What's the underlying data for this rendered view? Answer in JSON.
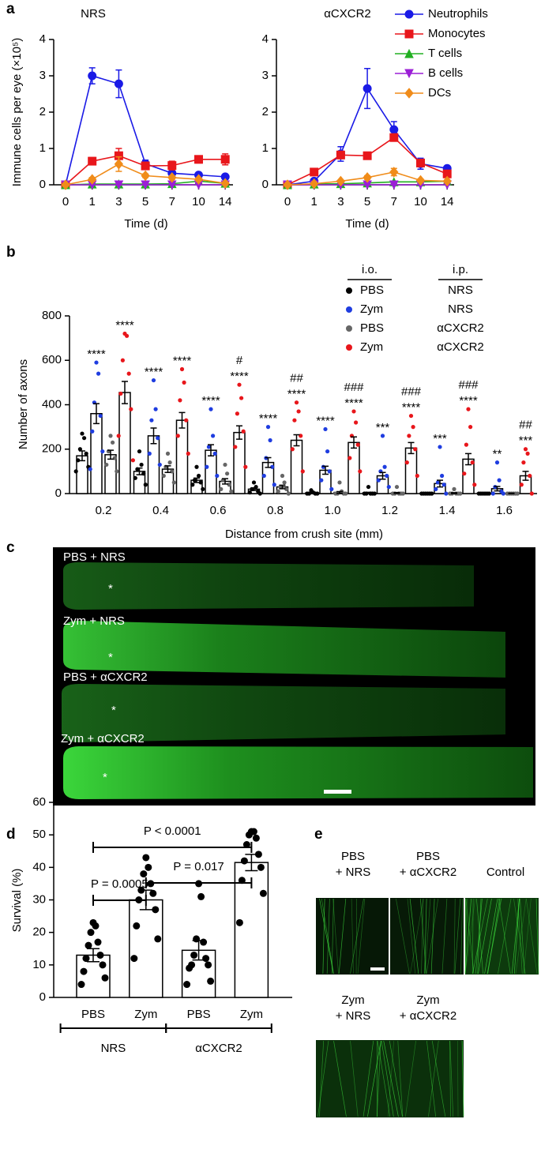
{
  "panel_labels": [
    "a",
    "b",
    "c",
    "d",
    "e"
  ],
  "chart_data": [
    {
      "type": "line",
      "title": "NRS",
      "y_label": "Immune cells per eye (×10⁵)",
      "x_label": "Time (d)",
      "categories": [
        "0",
        "1",
        "3",
        "5",
        "7",
        "10",
        "14"
      ],
      "ylim": [
        0,
        4
      ],
      "yticks": [
        0,
        1,
        2,
        3,
        4
      ],
      "series": [
        {
          "color": "#1a1ae6",
          "marker": "circle",
          "values": [
            0,
            3.0,
            2.78,
            0.58,
            0.32,
            0.27,
            0.22
          ],
          "errors": [
            0,
            0.22,
            0.38,
            0.1,
            0.05,
            0.04,
            0.04
          ]
        },
        {
          "color": "#e8161b",
          "marker": "square",
          "values": [
            0,
            0.65,
            0.8,
            0.52,
            0.53,
            0.7,
            0.7
          ],
          "errors": [
            0,
            0.1,
            0.2,
            0.1,
            0.12,
            0.1,
            0.15
          ]
        },
        {
          "color": "#22b022",
          "marker": "triangle-up",
          "values": [
            0,
            0.02,
            0.02,
            0.02,
            0.03,
            0.1,
            0.04
          ],
          "errors": [
            0,
            0.01,
            0.01,
            0.01,
            0.01,
            0.03,
            0.01
          ]
        },
        {
          "color": "#9b1fd6",
          "marker": "triangle-down",
          "values": [
            0,
            0,
            0,
            0,
            0,
            0,
            0
          ],
          "errors": [
            0,
            0,
            0,
            0,
            0,
            0,
            0
          ]
        },
        {
          "color": "#f08c1a",
          "marker": "diamond",
          "values": [
            0,
            0.15,
            0.57,
            0.25,
            0.2,
            0.15,
            0.04
          ],
          "errors": [
            0,
            0.05,
            0.2,
            0.05,
            0.05,
            0.04,
            0.02
          ]
        }
      ]
    },
    {
      "type": "line",
      "title": "αCXCR2",
      "x_label": "Time (d)",
      "legend": true,
      "categories": [
        "0",
        "1",
        "3",
        "5",
        "7",
        "10",
        "14"
      ],
      "ylim": [
        0,
        4
      ],
      "yticks": [
        0,
        1,
        2,
        3,
        4
      ],
      "series": [
        {
          "name": "Neutrophils",
          "color": "#1a1ae6",
          "marker": "circle",
          "values": [
            0,
            0.1,
            0.85,
            2.65,
            1.52,
            0.58,
            0.45
          ],
          "errors": [
            0,
            0.02,
            0.2,
            0.55,
            0.22,
            0.15,
            0.06
          ]
        },
        {
          "name": "Monocytes",
          "color": "#e8161b",
          "marker": "square",
          "values": [
            0,
            0.35,
            0.82,
            0.8,
            1.3,
            0.6,
            0.3
          ],
          "errors": [
            0,
            0.05,
            0.1,
            0.05,
            0.1,
            0.1,
            0.05
          ]
        },
        {
          "name": "T cells",
          "color": "#22b022",
          "marker": "triangle-up",
          "values": [
            0,
            0.02,
            0.03,
            0.05,
            0.08,
            0.08,
            0.1
          ],
          "errors": [
            0,
            0.01,
            0.01,
            0.02,
            0.02,
            0.02,
            0.02
          ]
        },
        {
          "name": "B cells",
          "color": "#9b1fd6",
          "marker": "triangle-down",
          "values": [
            0,
            0,
            0,
            0,
            0,
            0,
            0
          ],
          "errors": [
            0,
            0,
            0,
            0,
            0,
            0,
            0
          ]
        },
        {
          "name": "DCs",
          "color": "#f08c1a",
          "marker": "diamond",
          "values": [
            0,
            0.03,
            0.1,
            0.2,
            0.35,
            0.12,
            0.1
          ],
          "errors": [
            0,
            0.02,
            0.03,
            0.05,
            0.1,
            0.04,
            0.03
          ]
        }
      ]
    },
    {
      "type": "bar",
      "y_label": "Number of axons",
      "x_label": "Distance from crush site (mm)",
      "legend": true,
      "legend_headers": [
        "i.o.",
        "i.p."
      ],
      "categories": [
        "0.2",
        "0.4",
        "0.6",
        "0.8",
        "1.0",
        "1.2",
        "1.4",
        "1.6"
      ],
      "ylim": [
        0,
        800
      ],
      "yticks": [
        0,
        200,
        400,
        600,
        800
      ],
      "series": [
        {
          "name": "PBS",
          "ip": "NRS",
          "color": "#000000",
          "values": [
            170,
            100,
            60,
            20,
            3,
            3,
            2,
            2
          ],
          "errors": [
            22,
            15,
            10,
            6,
            2,
            3,
            1,
            1
          ],
          "points": [
            [
              270,
              250,
              200,
              180,
              150,
              120,
              100
            ],
            [
              190,
              130,
              110,
              90,
              70,
              40
            ],
            [
              120,
              80,
              60,
              50,
              40,
              20
            ],
            [
              50,
              30,
              20,
              10,
              5,
              0
            ],
            [
              15,
              5,
              0,
              0,
              0,
              0
            ],
            [
              30,
              0,
              0,
              0,
              0,
              0
            ],
            [
              0,
              0,
              0,
              0,
              0,
              0
            ],
            [
              0,
              0,
              0,
              0,
              0,
              0
            ]
          ]
        },
        {
          "name": "Zym",
          "ip": "NRS",
          "color": "#1f3de0",
          "values": [
            360,
            260,
            195,
            140,
            105,
            80,
            45,
            22
          ],
          "errors": [
            45,
            35,
            25,
            22,
            18,
            15,
            15,
            10
          ],
          "points": [
            [
              590,
              540,
              410,
              350,
              280,
              190,
              110
            ],
            [
              510,
              380,
              330,
              250,
              180,
              130
            ],
            [
              380,
              260,
              210,
              180,
              120,
              80
            ],
            [
              300,
              240,
              160,
              120,
              80,
              40
            ],
            [
              290,
              190,
              120,
              100,
              60,
              20
            ],
            [
              260,
              120,
              100,
              80,
              60,
              30
            ],
            [
              210,
              80,
              50,
              40,
              20,
              0
            ],
            [
              140,
              60,
              30,
              10,
              0,
              0
            ]
          ],
          "stars": [
            "****",
            "****",
            "****",
            "****",
            "****",
            "***",
            "***",
            "**"
          ]
        },
        {
          "name": "PBS",
          "ip": "αCXCR2",
          "color": "#666666",
          "values": [
            175,
            110,
            55,
            30,
            5,
            3,
            2,
            1
          ],
          "errors": [
            20,
            15,
            12,
            8,
            4,
            2,
            2,
            1
          ],
          "points": [
            [
              260,
              230,
              190,
              160,
              130,
              100
            ],
            [
              180,
              140,
              120,
              100,
              80,
              50
            ],
            [
              130,
              90,
              60,
              40,
              20,
              10
            ],
            [
              80,
              50,
              30,
              20,
              10,
              0
            ],
            [
              50,
              10,
              0,
              0,
              0,
              0
            ],
            [
              30,
              0,
              0,
              0,
              0,
              0
            ],
            [
              20,
              0,
              0,
              0,
              0,
              0
            ],
            [
              0,
              0,
              0,
              0,
              0,
              0
            ]
          ]
        },
        {
          "name": "Zym",
          "ip": "αCXCR2",
          "color": "#e8161b",
          "values": [
            455,
            330,
            275,
            240,
            230,
            205,
            155,
            80
          ],
          "errors": [
            50,
            35,
            30,
            25,
            25,
            25,
            25,
            20
          ],
          "points": [
            [
              720,
              710,
              600,
              540,
              450,
              380,
              260,
              150
            ],
            [
              560,
              500,
              420,
              330,
              260,
              180
            ],
            [
              490,
              430,
              360,
              280,
              210,
              120
            ],
            [
              410,
              370,
              330,
              260,
              200,
              100
            ],
            [
              370,
              320,
              260,
              220,
              160,
              100
            ],
            [
              350,
              300,
              260,
              200,
              140,
              80
            ],
            [
              380,
              300,
              220,
              140,
              90,
              40
            ],
            [
              200,
              180,
              140,
              80,
              40,
              0
            ]
          ],
          "stars": [
            "****",
            "****",
            "****",
            "****",
            "****",
            "****",
            "****",
            "***"
          ],
          "hashes": [
            null,
            null,
            "#",
            "##",
            "###",
            "###",
            "###",
            "##"
          ]
        }
      ]
    },
    {
      "type": "bar",
      "y_label": "Survival (%)",
      "categories": [
        "PBS",
        "Zym",
        "PBS",
        "Zym"
      ],
      "ylim": [
        0,
        60
      ],
      "yticks": [
        0,
        10,
        20,
        30,
        40,
        50,
        60
      ],
      "groups": [
        {
          "label": "NRS",
          "categories": [
            0,
            1
          ]
        },
        {
          "label": "αCXCR2",
          "categories": [
            2,
            3
          ]
        }
      ],
      "comparisons": [
        {
          "label": "P < 0.0001",
          "pair": [
            0,
            3
          ]
        },
        {
          "label": "P = 0.017",
          "pair": [
            1,
            3
          ]
        },
        {
          "label": "P = 0.0005",
          "pair": [
            0,
            1
          ]
        }
      ],
      "series": [
        {
          "color": "#000000",
          "values": [
            13,
            30,
            14.5,
            41.5
          ],
          "errors": [
            2,
            3,
            3,
            2.5
          ],
          "points": [
            [
              23,
              22,
              20,
              17,
              16,
              13,
              12,
              10,
              8,
              6,
              4
            ],
            [
              43,
              40,
              38,
              35,
              33,
              32,
              30,
              27,
              22,
              18,
              12
            ],
            [
              35,
              31,
              18,
              17,
              13,
              12,
              10,
              10,
              9,
              5,
              4
            ],
            [
              51,
              51,
              50,
              49,
              47,
              44,
              42,
              40,
              36,
              32,
              23
            ]
          ]
        }
      ]
    }
  ],
  "panel_c": {
    "labels": [
      "PBS + NRS",
      "Zym + NRS",
      "PBS + αCXCR2",
      "Zym + αCXCR2"
    ],
    "marker": "*"
  },
  "panel_e": {
    "labels": [
      [
        "PBS",
        "+ NRS"
      ],
      [
        "PBS",
        "+ αCXCR2"
      ],
      [
        "Control"
      ],
      [
        "Zym",
        "+ NRS"
      ],
      [
        "Zym",
        "+ αCXCR2"
      ]
    ]
  }
}
